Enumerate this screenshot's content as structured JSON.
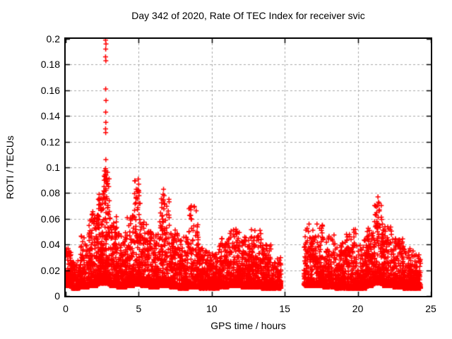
{
  "title": "Day 342 of 2020, Rate Of TEC Index for receiver svic",
  "chart_data": {
    "type": "scatter",
    "title": "Day 342 of 2020, Rate Of TEC Index for receiver svic",
    "xlabel": "GPS time / hours",
    "ylabel": "ROTI / TECUs",
    "xlim": [
      0,
      25
    ],
    "ylim": [
      0,
      0.2
    ],
    "xticks": [
      0,
      5,
      10,
      15,
      20,
      25
    ],
    "xtick_labels": [
      "0",
      "5",
      "10",
      "15",
      "20",
      "25"
    ],
    "yticks": [
      0,
      0.02,
      0.04,
      0.06,
      0.08,
      0.1,
      0.12,
      0.14,
      0.16,
      0.18,
      0.2
    ],
    "ytick_labels": [
      "0",
      "0.02",
      "0.04",
      "0.06",
      "0.08",
      "0.1",
      "0.12",
      "0.14",
      "0.16",
      "0.18",
      "0.2"
    ],
    "grid": true,
    "legend": "none",
    "marker": "plus",
    "marker_size_px": 7,
    "marker_color": "#ff0000",
    "grid_color": "#a9a9a9",
    "border_color": "#000000",
    "background": "#ffffff",
    "data_gap_hours": [
      14.75,
      16.3
    ],
    "outliers": [
      [
        2.73,
        0.199
      ],
      [
        2.76,
        0.196
      ],
      [
        2.74,
        0.192
      ],
      [
        2.73,
        0.186
      ],
      [
        2.75,
        0.183
      ],
      [
        2.74,
        0.161
      ],
      [
        2.76,
        0.152
      ],
      [
        2.74,
        0.143
      ],
      [
        2.75,
        0.135
      ],
      [
        2.73,
        0.13
      ],
      [
        2.74,
        0.127
      ],
      [
        2.75,
        0.106
      ],
      [
        2.73,
        0.099
      ],
      [
        2.76,
        0.094
      ],
      [
        2.7,
        0.09
      ],
      [
        2.64,
        0.09
      ],
      [
        2.63,
        0.085
      ],
      [
        2.65,
        0.081
      ],
      [
        2.62,
        0.076
      ],
      [
        4.97,
        0.091
      ],
      [
        5.0,
        0.087
      ],
      [
        4.99,
        0.082
      ],
      [
        5.02,
        0.078
      ],
      [
        6.7,
        0.083
      ],
      [
        6.74,
        0.078
      ],
      [
        6.68,
        0.074
      ],
      [
        8.6,
        0.07
      ],
      [
        8.57,
        0.067
      ],
      [
        21.38,
        0.077
      ],
      [
        21.42,
        0.073
      ],
      [
        21.35,
        0.07
      ]
    ],
    "density_segments": [
      [
        0.0,
        0.4,
        110,
        0.008,
        0.038,
        3.0
      ],
      [
        0.4,
        1.0,
        150,
        0.006,
        0.028,
        3.0
      ],
      [
        1.0,
        1.6,
        160,
        0.007,
        0.048,
        3.5
      ],
      [
        1.6,
        2.2,
        200,
        0.008,
        0.068,
        3.5
      ],
      [
        2.2,
        2.6,
        190,
        0.01,
        0.08,
        3.2
      ],
      [
        2.6,
        3.0,
        190,
        0.01,
        0.098,
        3.2
      ],
      [
        3.0,
        3.5,
        200,
        0.008,
        0.062,
        3.5
      ],
      [
        3.5,
        4.2,
        230,
        0.007,
        0.05,
        3.5
      ],
      [
        4.2,
        4.7,
        170,
        0.008,
        0.066,
        3.5
      ],
      [
        4.7,
        5.1,
        150,
        0.009,
        0.09,
        3.4
      ],
      [
        5.1,
        5.7,
        180,
        0.008,
        0.058,
        3.5
      ],
      [
        5.7,
        6.4,
        210,
        0.007,
        0.05,
        3.5
      ],
      [
        6.4,
        7.1,
        210,
        0.008,
        0.08,
        3.6
      ],
      [
        7.1,
        7.7,
        190,
        0.007,
        0.052,
        3.5
      ],
      [
        7.7,
        8.4,
        210,
        0.006,
        0.046,
        3.4
      ],
      [
        8.4,
        9.1,
        200,
        0.007,
        0.07,
        3.6
      ],
      [
        9.1,
        9.7,
        170,
        0.006,
        0.038,
        3.0
      ],
      [
        9.7,
        10.5,
        210,
        0.006,
        0.034,
        2.8
      ],
      [
        10.5,
        11.2,
        200,
        0.007,
        0.046,
        3.2
      ],
      [
        11.2,
        12.0,
        220,
        0.008,
        0.052,
        3.3
      ],
      [
        12.0,
        12.7,
        200,
        0.007,
        0.046,
        3.2
      ],
      [
        12.7,
        13.4,
        200,
        0.007,
        0.052,
        3.4
      ],
      [
        13.4,
        14.1,
        190,
        0.006,
        0.04,
        3.2
      ],
      [
        14.1,
        14.75,
        140,
        0.006,
        0.03,
        2.8
      ],
      [
        16.3,
        16.9,
        150,
        0.008,
        0.056,
        3.2
      ],
      [
        16.9,
        17.6,
        180,
        0.008,
        0.056,
        3.4
      ],
      [
        17.6,
        18.4,
        200,
        0.007,
        0.048,
        3.3
      ],
      [
        18.4,
        19.2,
        200,
        0.006,
        0.042,
        3.2
      ],
      [
        19.2,
        19.9,
        190,
        0.006,
        0.052,
        3.6
      ],
      [
        19.9,
        20.6,
        190,
        0.006,
        0.044,
        3.2
      ],
      [
        20.6,
        21.1,
        160,
        0.008,
        0.055,
        3.3
      ],
      [
        21.1,
        21.7,
        170,
        0.01,
        0.072,
        3.2
      ],
      [
        21.7,
        22.4,
        200,
        0.008,
        0.055,
        3.3
      ],
      [
        22.4,
        23.1,
        200,
        0.007,
        0.045,
        3.2
      ],
      [
        23.1,
        23.8,
        190,
        0.006,
        0.04,
        3.3
      ],
      [
        23.8,
        24.3,
        130,
        0.006,
        0.032,
        3.0
      ]
    ],
    "seed": 20342
  }
}
